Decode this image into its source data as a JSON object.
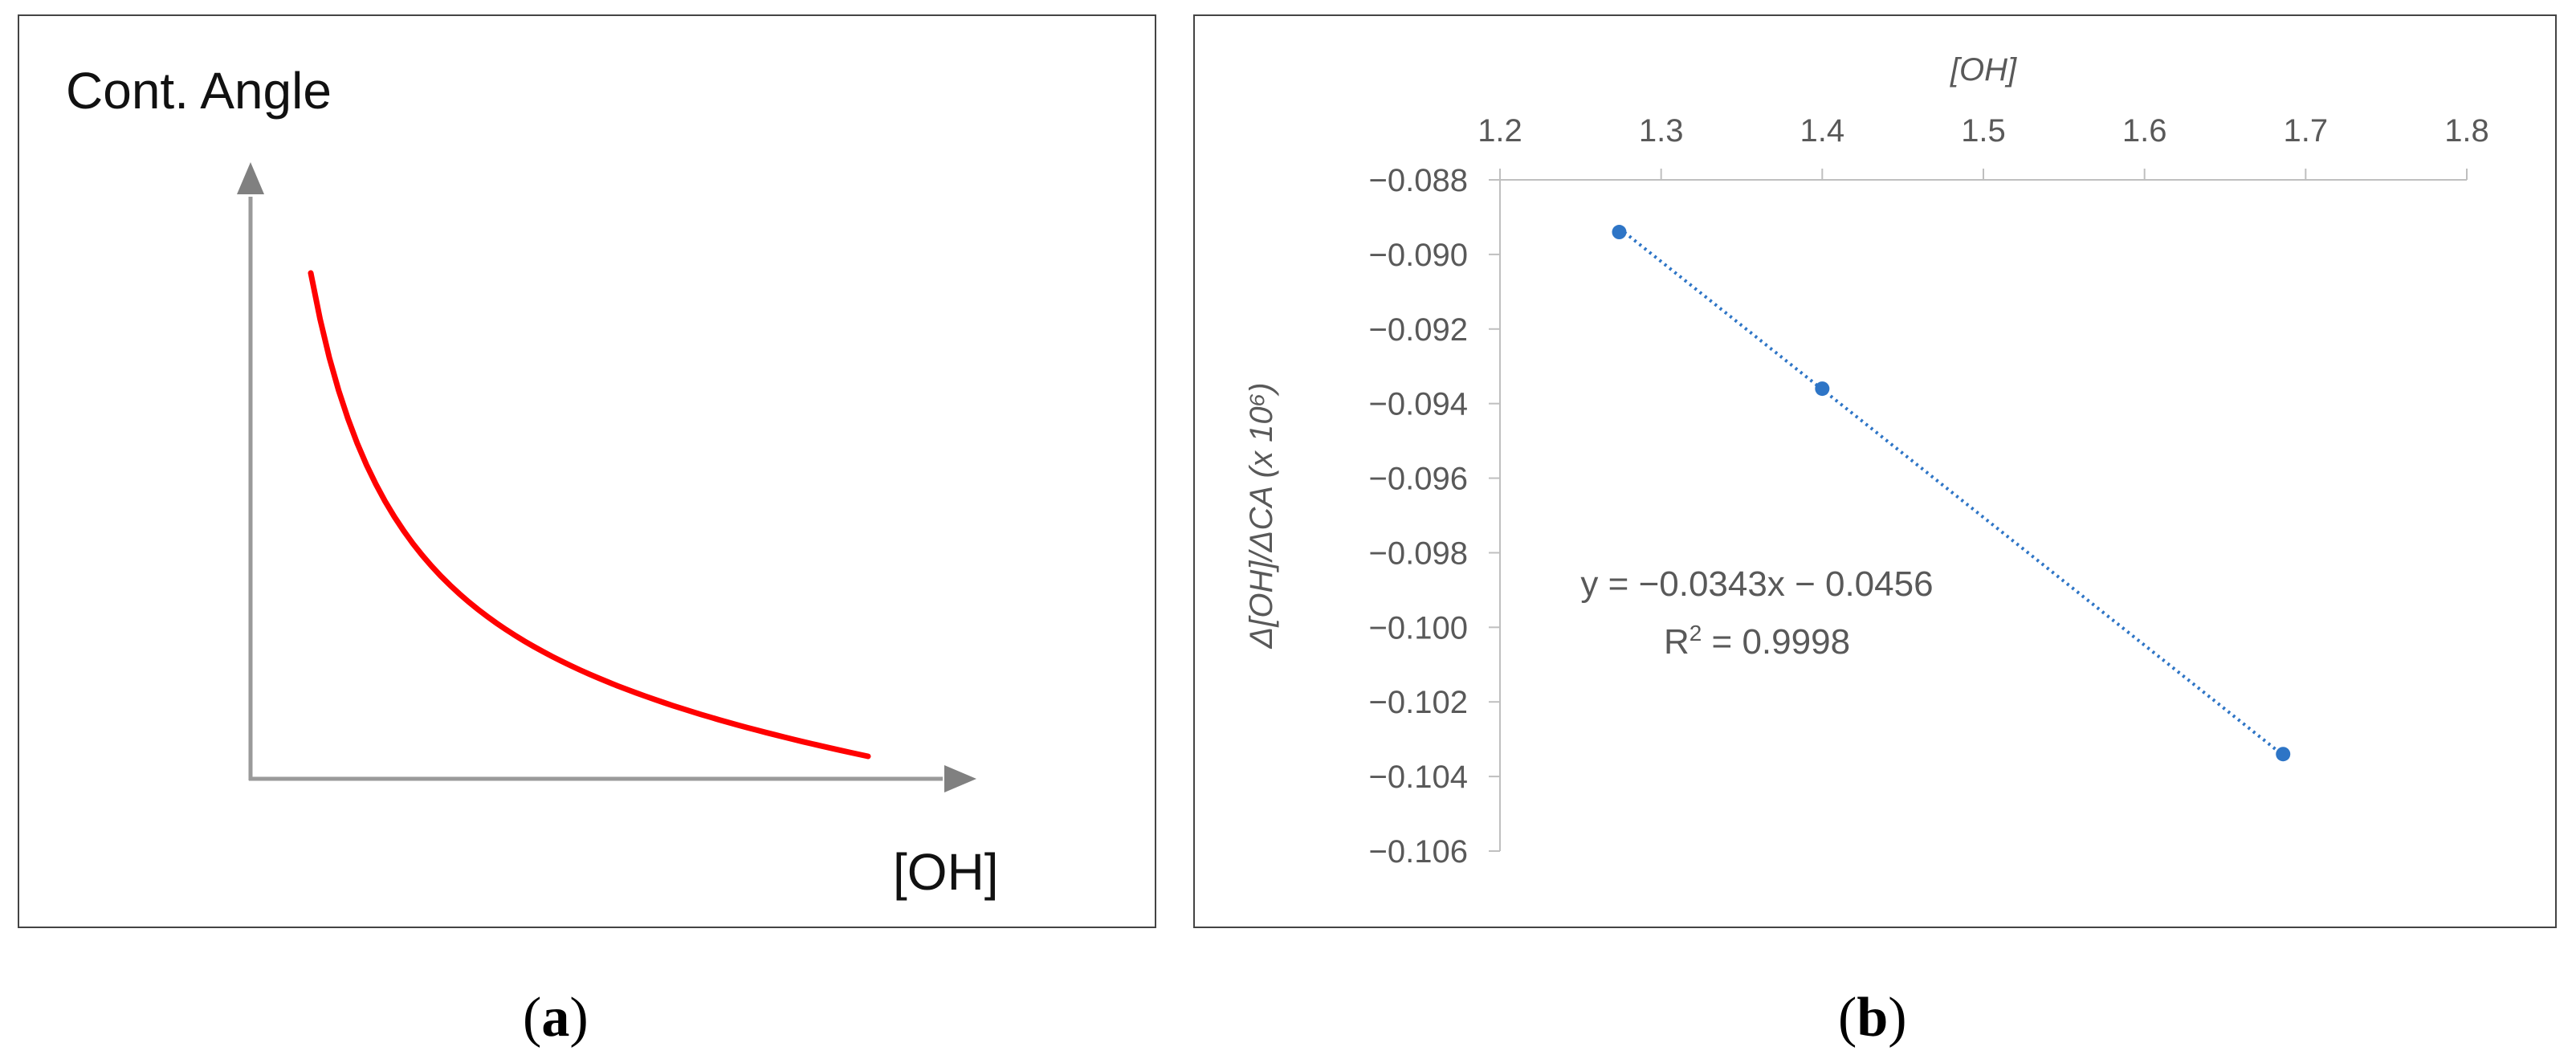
{
  "chart_data": [
    {
      "panel": "a",
      "type": "line",
      "title": "",
      "ylabel": "Cont. Angle",
      "xlabel": "[OH]",
      "ticks": "none",
      "series": [
        {
          "color": "#ff0000",
          "note_values": "qualitative decreasing convex curve; no numeric scale shown"
        }
      ],
      "caption": "(a)"
    },
    {
      "panel": "b",
      "type": "scatter",
      "title": "",
      "xlabel": "[OH]",
      "ylabel": "Δ[OH]/ΔCA (x 10⁶)",
      "x_axis_position": "top",
      "xlim": [
        1.2,
        1.8
      ],
      "ylim": [
        -0.106,
        -0.088
      ],
      "xticks": [
        "1.2",
        "1.3",
        "1.4",
        "1.5",
        "1.6",
        "1.7",
        "1.8"
      ],
      "yticks": [
        "−0.088",
        "−0.090",
        "−0.092",
        "−0.094",
        "−0.096",
        "−0.098",
        "−0.100",
        "−0.102",
        "−0.104",
        "−0.106"
      ],
      "x": [
        1.274,
        1.4,
        1.686
      ],
      "y": [
        -0.0894,
        -0.0936,
        -0.1034
      ],
      "marker_color": "#2e75c6",
      "trendline": {
        "style": "dotted",
        "color": "#2e75c6",
        "slope": -0.0343,
        "intercept": -0.0456
      },
      "annotation": {
        "equation": "y = −0.0343x − 0.0456",
        "r2_prefix": "R",
        "r2_sup": "2",
        "r2_value": " = 0.9998"
      },
      "grid": false,
      "caption": "(b)"
    }
  ],
  "captions": {
    "a": "a",
    "b": "b"
  }
}
